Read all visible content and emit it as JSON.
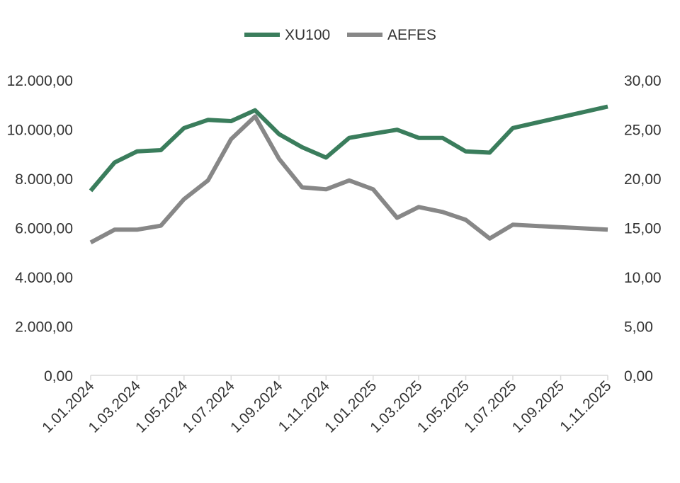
{
  "chart_data": {
    "type": "line",
    "title": "",
    "xlabel": "",
    "ylabel": "",
    "legend": {
      "position": "top-center"
    },
    "grid": false,
    "x_dates": [
      "2024-01-01",
      "2024-02-01",
      "2024-03-01",
      "2024-04-01",
      "2024-05-01",
      "2024-06-01",
      "2024-07-01",
      "2024-08-01",
      "2024-09-01",
      "2024-10-01",
      "2024-11-01",
      "2024-12-01",
      "2025-01-01",
      "2025-02-01",
      "2025-03-01",
      "2025-04-01",
      "2025-05-01",
      "2025-06-01",
      "2025-07-01",
      "2025-11-01"
    ],
    "x_ticks": [
      {
        "date": "2024-01-01",
        "label": "1.01.2024"
      },
      {
        "date": "2024-03-01",
        "label": "1.03.2024"
      },
      {
        "date": "2024-05-01",
        "label": "1.05.2024"
      },
      {
        "date": "2024-07-01",
        "label": "1.07.2024"
      },
      {
        "date": "2024-09-01",
        "label": "1.09.2024"
      },
      {
        "date": "2024-11-01",
        "label": "1.11.2024"
      },
      {
        "date": "2025-01-01",
        "label": "1.01.2025"
      },
      {
        "date": "2025-03-01",
        "label": "1.03.2025"
      },
      {
        "date": "2025-05-01",
        "label": "1.05.2025"
      },
      {
        "date": "2025-07-01",
        "label": "1.07.2025"
      },
      {
        "date": "2025-09-01",
        "label": "1.09.2025"
      },
      {
        "date": "2025-11-01",
        "label": "1.11.2025"
      }
    ],
    "xlim": [
      "2024-01-01",
      "2025-11-01"
    ],
    "y_left": {
      "min": 0,
      "max": 12000,
      "ticks": [
        "0,00",
        "2.000,00",
        "4.000,00",
        "6.000,00",
        "8.000,00",
        "10.000,00",
        "12.000,00"
      ]
    },
    "y_right": {
      "min": 0,
      "max": 30,
      "ticks": [
        "0,00",
        "5,00",
        "10,00",
        "15,00",
        "20,00",
        "25,00",
        "30,00"
      ]
    },
    "series": [
      {
        "name": "XU100",
        "axis": "left",
        "color": "#3a7d5c",
        "values": [
          7500,
          8650,
          9100,
          9150,
          10050,
          10380,
          10330,
          10770,
          9800,
          9270,
          8850,
          9650,
          9820,
          9980,
          9650,
          9650,
          9100,
          9050,
          10050,
          10920
        ]
      },
      {
        "name": "AEFES",
        "axis": "right",
        "color": "#878787",
        "values": [
          13.5,
          14.8,
          14.8,
          15.2,
          17.9,
          19.8,
          24.0,
          26.3,
          22.0,
          19.1,
          18.9,
          19.8,
          18.9,
          16.0,
          17.1,
          16.6,
          15.8,
          13.9,
          15.3,
          14.8
        ]
      }
    ]
  }
}
